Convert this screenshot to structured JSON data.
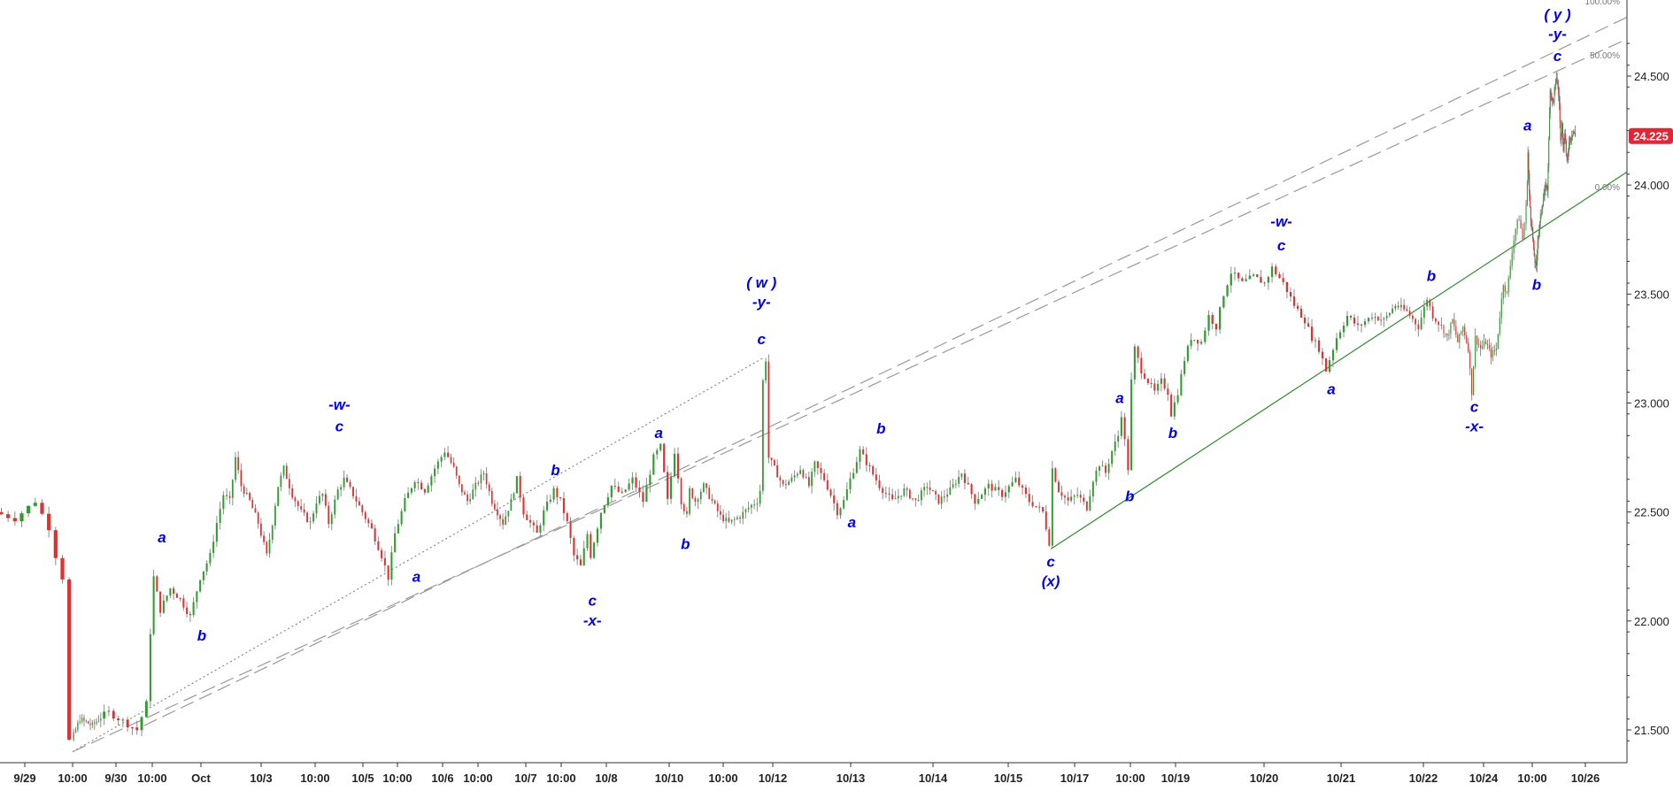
{
  "chart_data": {
    "type": "candlestick",
    "y_axis": {
      "min": 21.4,
      "max": 24.73,
      "ticks": [
        "21.500",
        "22.000",
        "22.500",
        "23.000",
        "23.500",
        "24.000",
        "24.500"
      ],
      "position": "right"
    },
    "x_axis": {
      "tick_labels": [
        "9/29",
        "10:00",
        "9/30",
        "10:00",
        "Oct",
        "10/3",
        "10:00",
        "10/5",
        "10:00",
        "10/6",
        "10:00",
        "10/7",
        "10:00",
        "10/8",
        "10/10",
        "10:00",
        "10/12",
        "10/13",
        "10/14",
        "10/15",
        "10/17",
        "10:00",
        "10/19",
        "10/20",
        "10/21",
        "10/22",
        "10/24",
        "10:00",
        "10/26"
      ]
    },
    "last_price": {
      "label": "24.225",
      "value": 24.225,
      "color": "#e32636"
    },
    "candle_colors": {
      "up": "#2e9e2e",
      "down": "#e03030"
    },
    "fib_levels": [
      {
        "label": "100.00%",
        "color": "#9a9a9a"
      },
      {
        "label": "50.00%",
        "color": "#9a9a9a"
      },
      {
        "label": "0.00%",
        "color": "#2e8b2e"
      }
    ],
    "channel_lines": [
      {
        "name": "upper",
        "style": "dashed",
        "color": "#999999",
        "x": [
          "9/30 09:00",
          "10/26 23:00"
        ],
        "y": [
          21.52,
          24.77
        ]
      },
      {
        "name": "middle",
        "style": "dashed",
        "color": "#999999",
        "x": [
          "9/29 10:00",
          "10/26 23:00"
        ],
        "y": [
          21.4,
          24.67
        ]
      },
      {
        "name": "lower",
        "style": "solid",
        "color": "#2e8b2e",
        "x": [
          "10/12 12:00",
          "10/26 23:00"
        ],
        "y": [
          22.33,
          24.06
        ]
      },
      {
        "name": "projection",
        "style": "dotted",
        "color": "#888888",
        "x": [
          "9/29 10:00",
          "10/8 16:00"
        ],
        "y": [
          21.4,
          23.21
        ]
      }
    ],
    "price_path": [
      {
        "x": "9/28 23:00",
        "y": 22.5
      },
      {
        "x": "9/29 02:00",
        "y": 22.47
      },
      {
        "x": "9/29 05:00",
        "y": 22.55
      },
      {
        "x": "9/29 07:00",
        "y": 22.43
      },
      {
        "x": "9/29 08:00",
        "y": 22.3
      },
      {
        "x": "9/29 09:00",
        "y": 22.2
      },
      {
        "x": "9/29 09:30",
        "y": 21.6
      },
      {
        "x": "9/29 10:00",
        "y": 21.45
      },
      {
        "x": "9/29 14:00",
        "y": 21.55
      },
      {
        "x": "9/29 20:00",
        "y": 21.52
      },
      {
        "x": "9/30 02:00",
        "y": 21.58
      },
      {
        "x": "9/30 08:00",
        "y": 21.5
      },
      {
        "x": "9/30 10:00",
        "y": 21.62
      },
      {
        "x": "9/30 11:00",
        "y": 21.95
      },
      {
        "x": "9/30 12:00",
        "y": 22.2
      },
      {
        "x": "9/30 14:00",
        "y": 22.05
      },
      {
        "x": "9/30 17:00",
        "y": 22.15
      },
      {
        "x": "9/30 20:00",
        "y": 22.1
      },
      {
        "x": "9/30 23:00",
        "y": 22.02
      },
      {
        "x": "10/1 02:00",
        "y": 22.2
      },
      {
        "x": "10/1 05:00",
        "y": 22.3
      },
      {
        "x": "10/1 07:00",
        "y": 22.45
      },
      {
        "x": "10/1 09:00",
        "y": 22.58
      },
      {
        "x": "10/1 11:00",
        "y": 22.55
      },
      {
        "x": "10/1 13:00",
        "y": 22.75
      },
      {
        "x": "10/1 15:00",
        "y": 22.62
      },
      {
        "x": "10/1 18:00",
        "y": 22.55
      },
      {
        "x": "10/1 21:00",
        "y": 22.45
      },
      {
        "x": "10/2 00:00",
        "y": 22.3
      },
      {
        "x": "10/2 02:00",
        "y": 22.45
      },
      {
        "x": "10/2 04:00",
        "y": 22.62
      },
      {
        "x": "10/2 06:00",
        "y": 22.7
      },
      {
        "x": "10/2 09:00",
        "y": 22.58
      },
      {
        "x": "10/2 12:00",
        "y": 22.5
      },
      {
        "x": "10/2 15:00",
        "y": 22.45
      },
      {
        "x": "10/2 17:00",
        "y": 22.55
      },
      {
        "x": "10/2 19:00",
        "y": 22.58
      },
      {
        "x": "10/2 21:00",
        "y": 22.45
      },
      {
        "x": "10/3 00:00",
        "y": 22.6
      },
      {
        "x": "10/3 02:00",
        "y": 22.65
      },
      {
        "x": "10/3 05:00",
        "y": 22.58
      },
      {
        "x": "10/3 08:00",
        "y": 22.5
      },
      {
        "x": "10/3 11:00",
        "y": 22.42
      },
      {
        "x": "10/3 14:00",
        "y": 22.3
      },
      {
        "x": "10/3 16:00",
        "y": 22.2
      },
      {
        "x": "10/3 18:00",
        "y": 22.4
      },
      {
        "x": "10/3 21:00",
        "y": 22.55
      },
      {
        "x": "10/4 00:00",
        "y": 22.65
      },
      {
        "x": "10/4 03:00",
        "y": 22.6
      },
      {
        "x": "10/4 06:00",
        "y": 22.7
      },
      {
        "x": "10/4 09:00",
        "y": 22.78
      },
      {
        "x": "10/4 12:00",
        "y": 22.7
      },
      {
        "x": "10/4 14:00",
        "y": 22.62
      },
      {
        "x": "10/4 17:00",
        "y": 22.55
      },
      {
        "x": "10/4 20:00",
        "y": 22.62
      },
      {
        "x": "10/4 23:00",
        "y": 22.68
      },
      {
        "x": "10/5 02:00",
        "y": 22.55
      },
      {
        "x": "10/5 06:00",
        "y": 22.45
      },
      {
        "x": "10/5 09:00",
        "y": 22.55
      },
      {
        "x": "10/5 11:00",
        "y": 22.65
      },
      {
        "x": "10/5 13:00",
        "y": 22.5
      },
      {
        "x": "10/5 15:00",
        "y": 22.45
      },
      {
        "x": "10/5 17:00",
        "y": 22.4
      },
      {
        "x": "10/5 19:00",
        "y": 22.5
      },
      {
        "x": "10/5 22:00",
        "y": 22.6
      },
      {
        "x": "10/6 00:00",
        "y": 22.55
      },
      {
        "x": "10/6 02:00",
        "y": 22.45
      },
      {
        "x": "10/6 04:00",
        "y": 22.3
      },
      {
        "x": "10/6 06:00",
        "y": 22.25
      },
      {
        "x": "10/6 08:00",
        "y": 22.4
      },
      {
        "x": "10/6 09:00",
        "y": 22.3
      },
      {
        "x": "10/6 12:00",
        "y": 22.5
      },
      {
        "x": "10/6 15:00",
        "y": 22.62
      },
      {
        "x": "10/6 18:00",
        "y": 22.58
      },
      {
        "x": "10/6 21:00",
        "y": 22.65
      },
      {
        "x": "10/7 00:00",
        "y": 22.55
      },
      {
        "x": "10/7 03:00",
        "y": 22.75
      },
      {
        "x": "10/7 05:00",
        "y": 22.8
      },
      {
        "x": "10/7 07:00",
        "y": 22.55
      },
      {
        "x": "10/7 09:00",
        "y": 22.78
      },
      {
        "x": "10/7 11:00",
        "y": 22.55
      },
      {
        "x": "10/7 13:00",
        "y": 22.48
      },
      {
        "x": "10/7 14:00",
        "y": 22.6
      },
      {
        "x": "10/7 16:00",
        "y": 22.55
      },
      {
        "x": "10/7 19:00",
        "y": 22.62
      },
      {
        "x": "10/7 22:00",
        "y": 22.55
      },
      {
        "x": "10/8 01:00",
        "y": 22.48
      },
      {
        "x": "10/8 04:00",
        "y": 22.45
      },
      {
        "x": "10/8 08:00",
        "y": 22.48
      },
      {
        "x": "10/8 11:00",
        "y": 22.52
      },
      {
        "x": "10/8 14:00",
        "y": 22.55
      },
      {
        "x": "10/8 15:00",
        "y": 22.6
      },
      {
        "x": "10/8 16:00",
        "y": 23.1
      },
      {
        "x": "10/8 17:00",
        "y": 23.2
      },
      {
        "x": "10/8 18:00",
        "y": 22.75
      },
      {
        "x": "10/8 20:00",
        "y": 22.7
      },
      {
        "x": "10/8 23:00",
        "y": 22.62
      },
      {
        "x": "10/9 02:00",
        "y": 22.65
      },
      {
        "x": "10/9 05:00",
        "y": 22.7
      },
      {
        "x": "10/9 08:00",
        "y": 22.62
      },
      {
        "x": "10/9 10:00",
        "y": 22.72
      },
      {
        "x": "10/9 13:00",
        "y": 22.65
      },
      {
        "x": "10/9 15:00",
        "y": 22.58
      },
      {
        "x": "10/9 17:00",
        "y": 22.5
      },
      {
        "x": "10/9 19:00",
        "y": 22.55
      },
      {
        "x": "10/9 21:00",
        "y": 22.65
      },
      {
        "x": "10/10 00:00",
        "y": 22.78
      },
      {
        "x": "10/10 03:00",
        "y": 22.7
      },
      {
        "x": "10/10 06:00",
        "y": 22.62
      },
      {
        "x": "10/10 10:00",
        "y": 22.55
      },
      {
        "x": "10/10 14:00",
        "y": 22.6
      },
      {
        "x": "10/10 18:00",
        "y": 22.55
      },
      {
        "x": "10/10 22:00",
        "y": 22.62
      },
      {
        "x": "10/11 02:00",
        "y": 22.55
      },
      {
        "x": "10/11 06:00",
        "y": 22.6
      },
      {
        "x": "10/11 10:00",
        "y": 22.68
      },
      {
        "x": "10/11 14:00",
        "y": 22.55
      },
      {
        "x": "10/11 18:00",
        "y": 22.62
      },
      {
        "x": "10/11 22:00",
        "y": 22.58
      },
      {
        "x": "10/12 02:00",
        "y": 22.65
      },
      {
        "x": "10/12 06:00",
        "y": 22.55
      },
      {
        "x": "10/12 10:00",
        "y": 22.5
      },
      {
        "x": "10/12 12:00",
        "y": 22.36
      },
      {
        "x": "10/12 13:00",
        "y": 22.7
      },
      {
        "x": "10/12 15:00",
        "y": 22.6
      },
      {
        "x": "10/12 18:00",
        "y": 22.55
      },
      {
        "x": "10/12 21:00",
        "y": 22.58
      },
      {
        "x": "10/13 00:00",
        "y": 22.52
      },
      {
        "x": "10/13 02:00",
        "y": 22.65
      },
      {
        "x": "10/13 04:00",
        "y": 22.72
      },
      {
        "x": "10/13 06:00",
        "y": 22.68
      },
      {
        "x": "10/13 08:00",
        "y": 22.78
      },
      {
        "x": "10/13 10:00",
        "y": 22.85
      },
      {
        "x": "10/13 11:00",
        "y": 22.95
      },
      {
        "x": "10/13 13:00",
        "y": 22.7
      },
      {
        "x": "10/13 14:00",
        "y": 23.1
      },
      {
        "x": "10/13 15:00",
        "y": 23.25
      },
      {
        "x": "10/13 17:00",
        "y": 23.15
      },
      {
        "x": "10/13 19:00",
        "y": 23.1
      },
      {
        "x": "10/13 21:00",
        "y": 23.05
      },
      {
        "x": "10/13 23:00",
        "y": 23.1
      },
      {
        "x": "10/14 01:00",
        "y": 23.05
      },
      {
        "x": "10/14 02:00",
        "y": 22.95
      },
      {
        "x": "10/14 04:00",
        "y": 23.05
      },
      {
        "x": "10/14 06:00",
        "y": 23.2
      },
      {
        "x": "10/14 08:00",
        "y": 23.3
      },
      {
        "x": "10/14 11:00",
        "y": 23.28
      },
      {
        "x": "10/14 13:00",
        "y": 23.4
      },
      {
        "x": "10/14 15:00",
        "y": 23.35
      },
      {
        "x": "10/14 17:00",
        "y": 23.5
      },
      {
        "x": "10/14 19:00",
        "y": 23.6
      },
      {
        "x": "10/14 22:00",
        "y": 23.55
      },
      {
        "x": "10/15 01:00",
        "y": 23.58
      },
      {
        "x": "10/15 04:00",
        "y": 23.55
      },
      {
        "x": "10/15 06:00",
        "y": 23.62
      },
      {
        "x": "10/15 09:00",
        "y": 23.55
      },
      {
        "x": "10/15 12:00",
        "y": 23.45
      },
      {
        "x": "10/15 15:00",
        "y": 23.38
      },
      {
        "x": "10/15 17:00",
        "y": 23.3
      },
      {
        "x": "10/15 19:00",
        "y": 23.25
      },
      {
        "x": "10/15 21:00",
        "y": 23.15
      },
      {
        "x": "10/16 00:00",
        "y": 23.3
      },
      {
        "x": "10/16 03:00",
        "y": 23.4
      },
      {
        "x": "10/16 06:00",
        "y": 23.35
      },
      {
        "x": "10/16 10:00",
        "y": 23.4
      },
      {
        "x": "10/16 14:00",
        "y": 23.38
      },
      {
        "x": "10/16 18:00",
        "y": 23.45
      },
      {
        "x": "10/16 22:00",
        "y": 23.42
      },
      {
        "x": "10/17 02:00",
        "y": 23.35
      },
      {
        "x": "10/17 05:00",
        "y": 23.48
      },
      {
        "x": "10/17 07:00",
        "y": 23.4
      },
      {
        "x": "10/17 10:00",
        "y": 23.35
      },
      {
        "x": "10/17 13:00",
        "y": 23.3
      },
      {
        "x": "10/17 16:00",
        "y": 23.38
      },
      {
        "x": "10/17 19:00",
        "y": 23.28
      },
      {
        "x": "10/17 22:00",
        "y": 23.35
      },
      {
        "x": "10/18 01:00",
        "y": 23.25
      },
      {
        "x": "10/18 03:00",
        "y": 23.05
      },
      {
        "x": "10/18 05:00",
        "y": 23.3
      },
      {
        "x": "10/18 08:00",
        "y": 23.25
      },
      {
        "x": "10/18 11:00",
        "y": 23.28
      },
      {
        "x": "10/18 14:00",
        "y": 23.22
      },
      {
        "x": "10/18 17:00",
        "y": 23.25
      },
      {
        "x": "10/18 19:00",
        "y": 23.4
      },
      {
        "x": "10/18 21:00",
        "y": 23.55
      },
      {
        "x": "10/18 23:00",
        "y": 23.5
      },
      {
        "x": "10/19 02:00",
        "y": 23.7
      },
      {
        "x": "10/19 04:00",
        "y": 23.8
      },
      {
        "x": "10/19 06:00",
        "y": 23.85
      },
      {
        "x": "10/19 08:00",
        "y": 23.75
      },
      {
        "x": "10/19 10:00",
        "y": 23.9
      },
      {
        "x": "10/19 12:00",
        "y": 24.15
      },
      {
        "x": "10/19 14:00",
        "y": 23.95
      },
      {
        "x": "10/19 16:00",
        "y": 23.85
      },
      {
        "x": "10/19 18:00",
        "y": 23.8
      },
      {
        "x": "10/19 20:00",
        "y": 23.7
      },
      {
        "x": "10/19 22:00",
        "y": 23.65
      },
      {
        "x": "10/20 00:00",
        "y": 23.62
      },
      {
        "x": "10/20 02:00",
        "y": 23.75
      },
      {
        "x": "10/20 05:00",
        "y": 23.82
      },
      {
        "x": "10/20 08:00",
        "y": 23.9
      },
      {
        "x": "10/20 11:00",
        "y": 23.95
      },
      {
        "x": "10/20 14:00",
        "y": 24.0
      },
      {
        "x": "10/20 16:00",
        "y": 23.98
      },
      {
        "x": "10/20 18:00",
        "y": 24.2
      },
      {
        "x": "10/20 20:00",
        "y": 24.45
      },
      {
        "x": "10/20 22:00",
        "y": 24.4
      },
      {
        "x": "10/21 00:00",
        "y": 24.38
      },
      {
        "x": "10/21 02:00",
        "y": 24.42
      },
      {
        "x": "10/21 05:00",
        "y": 24.5
      },
      {
        "x": "10/21 07:00",
        "y": 24.45
      },
      {
        "x": "10/21 09:00",
        "y": 24.38
      },
      {
        "x": "10/21 11:00",
        "y": 24.2
      },
      {
        "x": "10/21 13:00",
        "y": 24.3
      },
      {
        "x": "10/21 15:00",
        "y": 24.15
      },
      {
        "x": "10/21 17:00",
        "y": 24.25
      },
      {
        "x": "10/21 19:00",
        "y": 24.15
      },
      {
        "x": "10/21 21:00",
        "y": 24.1
      },
      {
        "x": "10/21 23:00",
        "y": 24.2
      },
      {
        "x": "10/22 02:00",
        "y": 24.22
      },
      {
        "x": "10/22 05:00",
        "y": 24.25
      },
      {
        "x": "10/22 08:00",
        "y": 24.225
      }
    ],
    "wave_labels": [
      {
        "text": "a",
        "x": "9/30 14:00",
        "y": 22.36
      },
      {
        "x": "10/1 02:00",
        "y": 21.91,
        "text": "b"
      },
      {
        "text": "-w-",
        "x": "10/3 00:00",
        "y": 22.97
      },
      {
        "text": "c",
        "x": "10/3 00:00",
        "y": 22.87
      },
      {
        "text": "a",
        "x": "10/4 00:00",
        "y": 22.18
      },
      {
        "text": "b",
        "x": "10/5 22:00",
        "y": 22.67
      },
      {
        "text": "c",
        "x": "10/6 09:00",
        "y": 22.07
      },
      {
        "text": "-x-",
        "x": "10/6 09:00",
        "y": 21.98
      },
      {
        "text": "a",
        "x": "10/7 04:00",
        "y": 22.84
      },
      {
        "text": "b",
        "x": "10/7 12:00",
        "y": 22.33
      },
      {
        "text": "( w )",
        "x": "10/8 15:00",
        "y": 23.53
      },
      {
        "text": "-y-",
        "x": "10/8 15:00",
        "y": 23.44
      },
      {
        "text": "c",
        "x": "10/8 15:00",
        "y": 23.27
      },
      {
        "text": "a",
        "x": "10/9 21:00",
        "y": 22.43
      },
      {
        "text": "b",
        "x": "10/10 06:00",
        "y": 22.86
      },
      {
        "text": "c",
        "x": "10/12 12:00",
        "y": 22.25
      },
      {
        "text": "(x)",
        "x": "10/12 12:00",
        "y": 22.16
      },
      {
        "text": "a",
        "x": "10/13 10:00",
        "y": 23.0
      },
      {
        "text": "b",
        "x": "10/13 13:00",
        "y": 22.55
      },
      {
        "text": "b",
        "x": "10/14 02:00",
        "y": 22.84
      },
      {
        "text": "-w-",
        "x": "10/15 08:00",
        "y": 23.81
      },
      {
        "text": "c",
        "x": "10/15 08:00",
        "y": 23.7
      },
      {
        "text": "a",
        "x": "10/15 22:00",
        "y": 23.04
      },
      {
        "text": "b",
        "x": "10/17 06:00",
        "y": 23.56
      },
      {
        "text": "c",
        "x": "10/18 04:00",
        "y": 22.96
      },
      {
        "text": "-x-",
        "x": "10/18 04:00",
        "y": 22.87
      },
      {
        "text": "a",
        "x": "10/19 11:00",
        "y": 24.25
      },
      {
        "text": "b",
        "x": "10/20 00:00",
        "y": 23.52
      },
      {
        "text": "( y )",
        "x": "10/21 06:00",
        "y": 24.76
      },
      {
        "text": "-y-",
        "x": "10/21 06:00",
        "y": 24.67
      },
      {
        "text": "c",
        "x": "10/21 06:00",
        "y": 24.57
      }
    ]
  }
}
